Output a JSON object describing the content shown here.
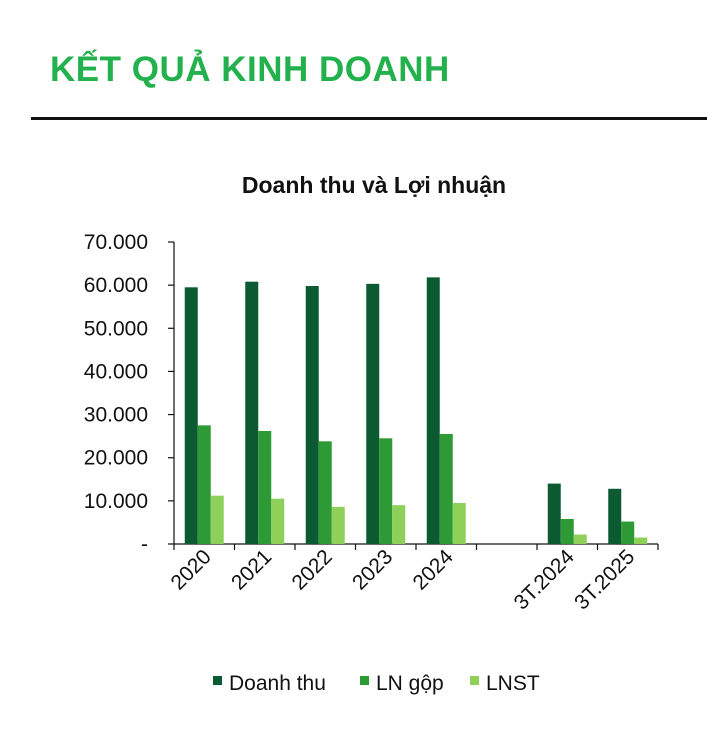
{
  "header": {
    "title": "KẾT QUẢ KINH DOANH"
  },
  "chart_data": {
    "type": "bar",
    "title": "Doanh thu và Lợi nhuận",
    "xlabel": "",
    "ylabel": "",
    "categories": [
      "2020",
      "2021",
      "2022",
      "2023",
      "2024",
      "",
      "3T.2024",
      "3T.2025"
    ],
    "series": [
      {
        "name": "Doanh thu",
        "color": "#0b5a32",
        "values": [
          59500,
          60800,
          59800,
          60300,
          61800,
          null,
          14000,
          12800
        ]
      },
      {
        "name": "LN gộp",
        "color": "#2e9a35",
        "values": [
          27500,
          26200,
          23800,
          24500,
          25500,
          null,
          5800,
          5200
        ]
      },
      {
        "name": "LNST",
        "color": "#8fd05a",
        "values": [
          11200,
          10500,
          8600,
          9000,
          9500,
          null,
          2200,
          1500
        ]
      }
    ],
    "ylim": [
      0,
      70000
    ],
    "yticks": [
      {
        "value": 0,
        "label": "-"
      },
      {
        "value": 10000,
        "label": "10.000"
      },
      {
        "value": 20000,
        "label": "20.000"
      },
      {
        "value": 30000,
        "label": "30.000"
      },
      {
        "value": 40000,
        "label": "40.000"
      },
      {
        "value": 50000,
        "label": "50.000"
      },
      {
        "value": 60000,
        "label": "60.000"
      },
      {
        "value": 70000,
        "label": "70.000"
      }
    ],
    "grid": false,
    "legend_position": "bottom"
  }
}
